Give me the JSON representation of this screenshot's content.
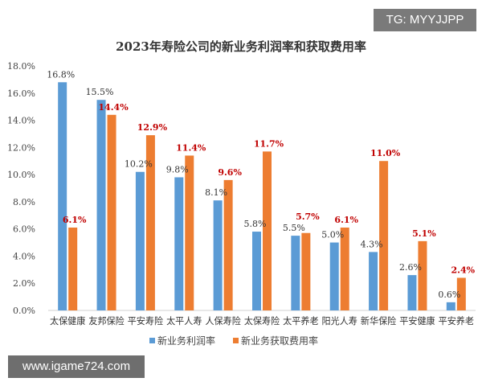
{
  "overlay": {
    "tg_label": "TG: MYYJJPP",
    "site_label": "www.igame724.com"
  },
  "chart_data": {
    "type": "bar",
    "title": "2023年寿险公司的新业务利润率和获取费用率",
    "categories": [
      "太保健康",
      "友邦保险",
      "平安寿险",
      "太平人寿",
      "人保寿险",
      "太保寿险",
      "太平养老",
      "阳光人寿",
      "新华保险",
      "平安健康",
      "平安养老"
    ],
    "series": [
      {
        "name": "新业务利润率",
        "color": "#5b9bd5",
        "label_color": "#333333",
        "values": [
          16.8,
          15.5,
          10.2,
          9.8,
          8.1,
          5.8,
          5.5,
          5.0,
          4.3,
          2.6,
          0.6
        ]
      },
      {
        "name": "新业务获取费用率",
        "color": "#ed7d31",
        "label_color": "#c00000",
        "values": [
          6.1,
          14.4,
          12.9,
          11.4,
          9.6,
          11.7,
          5.7,
          6.1,
          11.0,
          5.1,
          2.4
        ]
      }
    ],
    "ylim": [
      0,
      18
    ],
    "yticks": [
      "0.0%",
      "2.0%",
      "4.0%",
      "6.0%",
      "8.0%",
      "10.0%",
      "12.0%",
      "14.0%",
      "16.0%",
      "18.0%"
    ],
    "grid": false,
    "legend": "bottom",
    "xlabel": "",
    "ylabel": ""
  }
}
